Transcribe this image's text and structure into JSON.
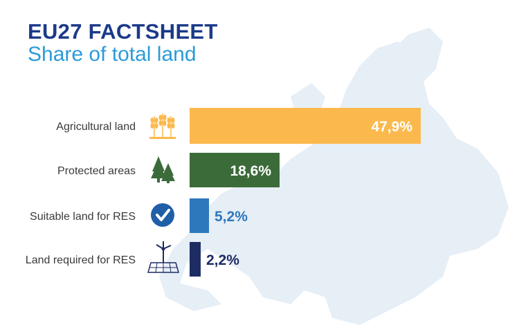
{
  "header": {
    "title": "EU27 FACTSHEET",
    "subtitle": "Share of total land"
  },
  "chart_data": {
    "type": "bar",
    "orientation": "horizontal",
    "categories": [
      "Agricultural land",
      "Protected areas",
      "Suitable land for RES",
      "Land required for RES"
    ],
    "values": [
      47.9,
      18.6,
      5.2,
      2.2
    ],
    "value_labels": [
      "47,9%",
      "18,6%",
      "5,2%",
      "2,2%"
    ],
    "colors": [
      "#fbb94d",
      "#3c6b3a",
      "#2d77bd",
      "#1d2c63"
    ],
    "icons": [
      "wheat-icon",
      "trees-icon",
      "checkmark-circle-icon",
      "wind-solar-icon"
    ],
    "unit": "%",
    "grid": false
  }
}
